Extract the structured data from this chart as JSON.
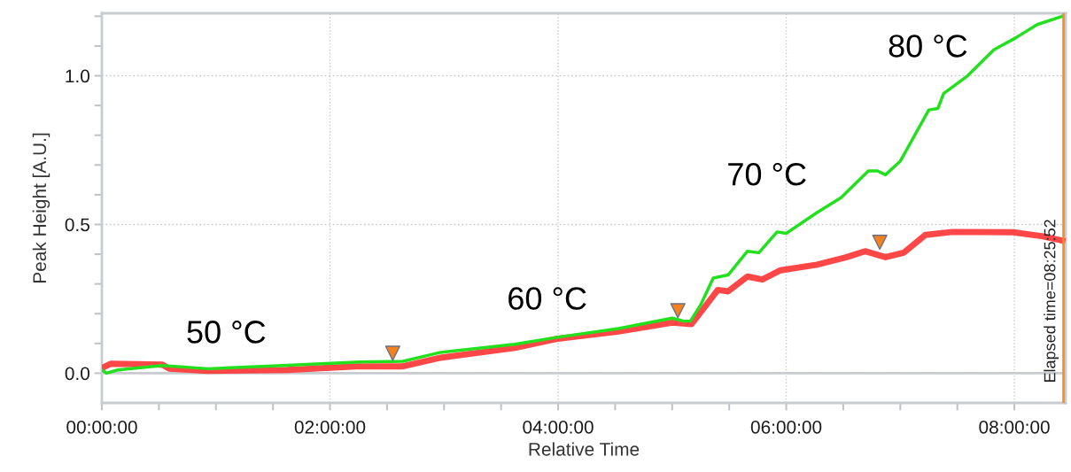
{
  "chart_data": {
    "type": "line",
    "xlabel": "Relative Time",
    "ylabel": "Peak Height [A.U.]",
    "xlim": [
      0,
      8.45
    ],
    "ylim": [
      -0.1,
      1.21
    ],
    "xticks": [
      {
        "value": 0,
        "label": "00:00:00"
      },
      {
        "value": 0.5,
        "label": null
      },
      {
        "value": 1,
        "label": null
      },
      {
        "value": 1.5,
        "label": null
      },
      {
        "value": 2,
        "label": "02:00:00"
      },
      {
        "value": 2.5,
        "label": null
      },
      {
        "value": 3,
        "label": null
      },
      {
        "value": 3.5,
        "label": null
      },
      {
        "value": 4,
        "label": "04:00:00"
      },
      {
        "value": 4.5,
        "label": null
      },
      {
        "value": 5,
        "label": null
      },
      {
        "value": 5.5,
        "label": null
      },
      {
        "value": 6,
        "label": "06:00:00"
      },
      {
        "value": 6.5,
        "label": null
      },
      {
        "value": 7,
        "label": null
      },
      {
        "value": 7.5,
        "label": null
      },
      {
        "value": 8,
        "label": "08:00:00"
      }
    ],
    "yticks": [
      {
        "value": 0,
        "label": "0.0"
      },
      {
        "value": 0.1,
        "label": null
      },
      {
        "value": 0.2,
        "label": null
      },
      {
        "value": 0.3,
        "label": null
      },
      {
        "value": 0.4,
        "label": null
      },
      {
        "value": 0.5,
        "label": "0.5"
      },
      {
        "value": 0.6,
        "label": null
      },
      {
        "value": 0.7,
        "label": null
      },
      {
        "value": 0.8,
        "label": null
      },
      {
        "value": 0.9,
        "label": null
      },
      {
        "value": 1.0,
        "label": "1.0"
      },
      {
        "value": 1.1,
        "label": null
      },
      {
        "value": 1.2,
        "label": null
      }
    ],
    "grid": true,
    "legend": false,
    "line_style": "solid",
    "series": [
      {
        "color": "#ff3333",
        "x": [
          0.0,
          0.08,
          0.53,
          0.59,
          0.93,
          1.62,
          2.23,
          2.64,
          2.97,
          3.62,
          3.98,
          4.53,
          5.0,
          5.17,
          5.4,
          5.49,
          5.66,
          5.79,
          5.95,
          6.27,
          6.53,
          6.69,
          6.87,
          7.03,
          7.22,
          7.46,
          7.99,
          8.25,
          8.42
        ],
        "values": [
          0.017,
          0.032,
          0.029,
          0.015,
          0.008,
          0.011,
          0.023,
          0.023,
          0.052,
          0.085,
          0.115,
          0.14,
          0.17,
          0.165,
          0.28,
          0.275,
          0.325,
          0.315,
          0.346,
          0.365,
          0.39,
          0.41,
          0.39,
          0.405,
          0.465,
          0.475,
          0.474,
          0.46,
          0.446
        ]
      },
      {
        "color": "#22e01e",
        "x": [
          0.0,
          0.04,
          0.14,
          0.53,
          0.93,
          1.59,
          2.26,
          2.64,
          2.97,
          3.62,
          3.98,
          4.53,
          5.0,
          5.1,
          5.16,
          5.25,
          5.36,
          5.49,
          5.66,
          5.76,
          5.92,
          6.0,
          6.27,
          6.48,
          6.72,
          6.8,
          6.87,
          7.0,
          7.25,
          7.33,
          7.38,
          7.59,
          7.82,
          8.01,
          8.2,
          8.42
        ],
        "values": [
          0.011,
          0.0,
          0.011,
          0.026,
          0.015,
          0.026,
          0.038,
          0.04,
          0.07,
          0.097,
          0.12,
          0.15,
          0.185,
          0.175,
          0.175,
          0.23,
          0.32,
          0.33,
          0.41,
          0.405,
          0.475,
          0.47,
          0.54,
          0.59,
          0.68,
          0.68,
          0.667,
          0.713,
          0.885,
          0.89,
          0.94,
          1.0,
          1.087,
          1.127,
          1.172,
          1.2
        ]
      },
      {
        "type": "scatter",
        "marker": "triangle",
        "color": "#f5821f",
        "x": [
          2.55,
          5.05,
          6.82
        ],
        "values": [
          0.067,
          0.21,
          0.44
        ]
      }
    ],
    "ref_lines": [
      {
        "axis": "y",
        "value": 0,
        "label": null,
        "color": "#c8ccd0",
        "line_style": "solid"
      },
      {
        "axis": "x",
        "value": 8.431,
        "label": "Elapsed time=08:25:52",
        "color": "#ff8c1a",
        "line_style": "solid"
      }
    ],
    "annotations": [
      "50 °C",
      "60 °C",
      "70 °C",
      "80 °C"
    ]
  }
}
